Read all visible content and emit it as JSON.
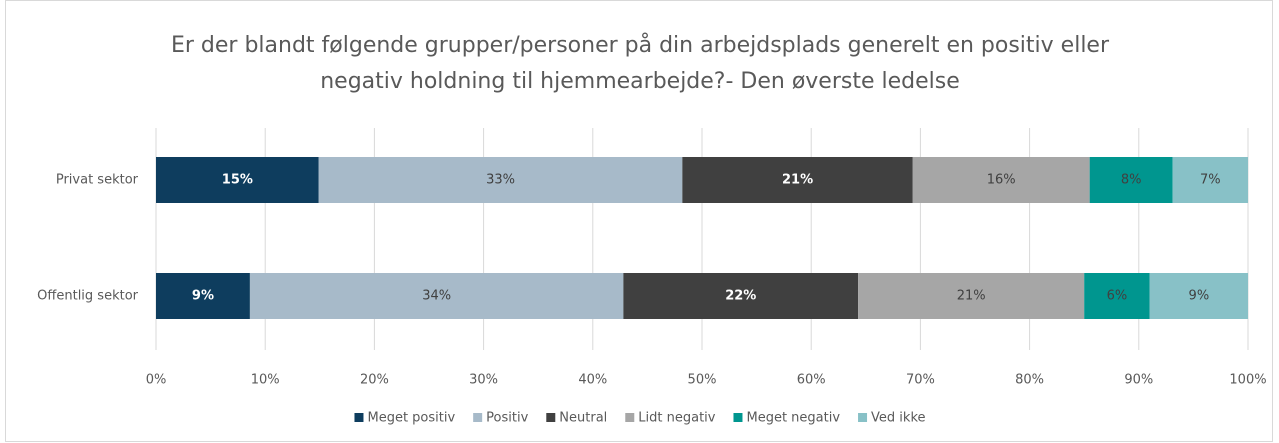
{
  "chart_data": {
    "type": "stacked_barh",
    "title": "Er der blandt følgende grupper/personer på din arbejdsplads generelt en positiv eller negativ holdning til hjemmearbejde?- Den øverste ledelse",
    "categories": [
      "Privat sektor",
      "Offentlig sektor"
    ],
    "series": [
      {
        "name": "Meget positiv",
        "color": "#0e3d5e",
        "values": [
          14.9,
          8.6
        ],
        "value_labels": [
          "15%",
          "9%"
        ]
      },
      {
        "name": "Positiv",
        "color": "#a7bac9",
        "values": [
          33.3,
          34.2
        ],
        "value_labels": [
          "33%",
          "34%"
        ]
      },
      {
        "name": "Neutral",
        "color": "#404040",
        "values": [
          21.1,
          21.5
        ],
        "value_labels": [
          "21%",
          "22%"
        ]
      },
      {
        "name": "Lidt negativ",
        "color": "#a6a6a6",
        "values": [
          16.2,
          20.7
        ],
        "value_labels": [
          "16%",
          "21%"
        ]
      },
      {
        "name": "Meget negativ",
        "color": "#00968f",
        "values": [
          7.6,
          6.0
        ],
        "value_labels": [
          "8%",
          "6%"
        ]
      },
      {
        "name": "Ved ikke",
        "color": "#88c1c7",
        "values": [
          6.9,
          9.0
        ],
        "value_labels": [
          "7%",
          "9%"
        ]
      }
    ],
    "xlim": [
      0,
      100
    ],
    "xticks": [
      {
        "value": 0,
        "label": "0%"
      },
      {
        "value": 10,
        "label": "10%"
      },
      {
        "value": 20,
        "label": "20%"
      },
      {
        "value": 30,
        "label": "30%"
      },
      {
        "value": 40,
        "label": "40%"
      },
      {
        "value": 50,
        "label": "50%"
      },
      {
        "value": 60,
        "label": "60%"
      },
      {
        "value": 70,
        "label": "70%"
      },
      {
        "value": 80,
        "label": "80%"
      },
      {
        "value": 90,
        "label": "90%"
      },
      {
        "value": 100,
        "label": "100%"
      }
    ],
    "grid": true,
    "legend": "bottom"
  }
}
